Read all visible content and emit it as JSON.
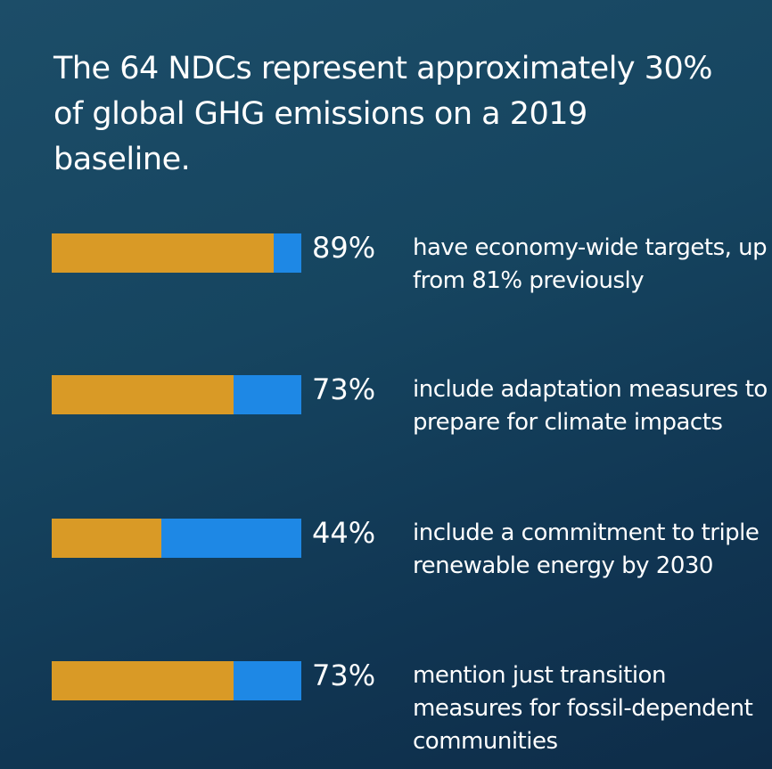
{
  "chart_data": {
    "type": "bar",
    "title": "The 64 NDCs represent approximately 30% of global GHG emissions on a 2019 baseline.",
    "ylim": [
      0,
      100
    ],
    "colors": {
      "fill": "#d99a26",
      "remainder": "#1e88e5"
    },
    "items": [
      {
        "value": 89,
        "label": "89%",
        "text": "have economy-wide targets, up from 81% previously"
      },
      {
        "value": 73,
        "label": "73%",
        "text": "include adaptation measures to prepare for climate impacts"
      },
      {
        "value": 44,
        "label": "44%",
        "text": "include a commitment to triple renewable energy by 2030"
      },
      {
        "value": 73,
        "label": "73%",
        "text": "mention just transition measures for fossil-dependent communities"
      }
    ]
  }
}
